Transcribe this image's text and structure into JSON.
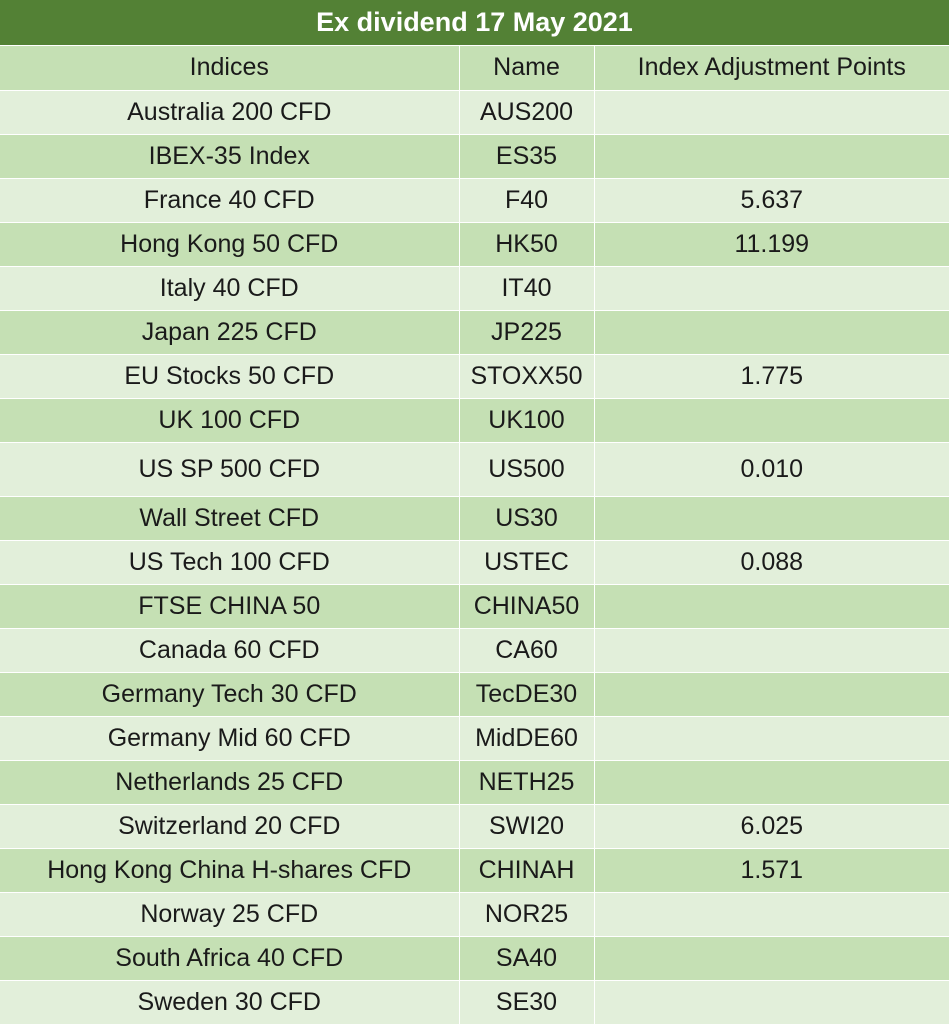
{
  "title": "Ex dividend 17 May 2021",
  "columns": [
    "Indices",
    "Name",
    "Index Adjustment Points"
  ],
  "rows": [
    {
      "index": "Australia 200 CFD",
      "name": "AUS200",
      "points": ""
    },
    {
      "index": "IBEX-35 Index",
      "name": "ES35",
      "points": ""
    },
    {
      "index": "France 40 CFD",
      "name": "F40",
      "points": "5.637"
    },
    {
      "index": "Hong Kong 50 CFD",
      "name": "HK50",
      "points": "11.199"
    },
    {
      "index": "Italy 40 CFD",
      "name": "IT40",
      "points": ""
    },
    {
      "index": "Japan 225 CFD",
      "name": "JP225",
      "points": ""
    },
    {
      "index": "EU Stocks 50 CFD",
      "name": "STOXX50",
      "points": "1.775"
    },
    {
      "index": "UK 100 CFD",
      "name": "UK100",
      "points": ""
    },
    {
      "index": "US SP 500 CFD",
      "name": "US500",
      "points": "0.010"
    },
    {
      "index": "Wall Street CFD",
      "name": "US30",
      "points": ""
    },
    {
      "index": "US Tech 100 CFD",
      "name": "USTEC",
      "points": "0.088"
    },
    {
      "index": "FTSE CHINA 50",
      "name": "CHINA50",
      "points": ""
    },
    {
      "index": "Canada 60 CFD",
      "name": "CA60",
      "points": ""
    },
    {
      "index": "Germany Tech 30 CFD",
      "name": "TecDE30",
      "points": ""
    },
    {
      "index": "Germany Mid 60 CFD",
      "name": "MidDE60",
      "points": ""
    },
    {
      "index": "Netherlands 25 CFD",
      "name": "NETH25",
      "points": ""
    },
    {
      "index": "Switzerland 20 CFD",
      "name": "SWI20",
      "points": "6.025"
    },
    {
      "index": "Hong Kong China H-shares CFD",
      "name": "CHINAH",
      "points": "1.571"
    },
    {
      "index": "Norway 25 CFD",
      "name": "NOR25",
      "points": ""
    },
    {
      "index": "South Africa 40 CFD",
      "name": "SA40",
      "points": ""
    },
    {
      "index": "Sweden 30 CFD",
      "name": "SE30",
      "points": ""
    }
  ],
  "colors": {
    "title_bg": "#538135",
    "row_dark": "#c5e0b4",
    "row_light": "#e2efda"
  }
}
